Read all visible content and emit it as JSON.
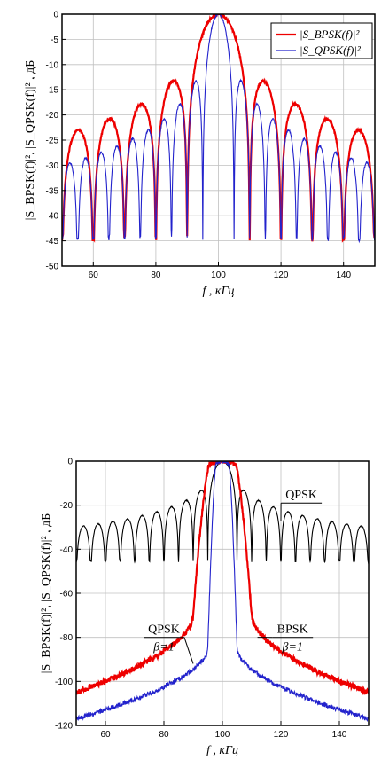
{
  "chart_data": [
    {
      "type": "line",
      "xlim": [
        50,
        150
      ],
      "ylim": [
        -50,
        0
      ],
      "x_ticks": [
        60,
        80,
        100,
        120,
        140
      ],
      "y_ticks": [
        0,
        -5,
        -10,
        -15,
        -20,
        -25,
        -30,
        -35,
        -40,
        -45,
        -50
      ],
      "xlabel": "f ,  кГц",
      "ylabel": "|S_BPSK(f)|², |S_QPSK(f)|² ,  дБ",
      "grid": true,
      "legend_position": "top-right",
      "series": [
        {
          "name": "|S_BPSK(f)|²",
          "color": "#ee0000",
          "model": "bpsk",
          "center": 100,
          "main_lobe_halfwidth": 10,
          "floor": -45
        },
        {
          "name": "|S_QPSK(f)|²",
          "color": "#2222cc",
          "model": "qpsk",
          "center": 100,
          "main_lobe_halfwidth": 5,
          "floor": -45
        }
      ]
    },
    {
      "type": "line",
      "xlim": [
        50,
        150
      ],
      "ylim": [
        -120,
        0
      ],
      "x_ticks": [
        60,
        80,
        100,
        120,
        140
      ],
      "y_ticks": [
        0,
        -20,
        -40,
        -60,
        -80,
        -100,
        -120
      ],
      "xlabel": "f ,  кГц",
      "ylabel": "|S_BPSK(f)|², |S_QPSK(f)|² ,  дБ",
      "grid": true,
      "series": [
        {
          "name": "QPSK",
          "color": "#000000",
          "model": "qpsk",
          "center": 100,
          "main_lobe_halfwidth": 5,
          "floor": -46
        },
        {
          "name": "BPSK β=1",
          "color": "#ee0000",
          "model": "rc",
          "center": 100,
          "bandwidth": 20,
          "edge_level": -70,
          "far_level": -105
        },
        {
          "name": "QPSK β=1",
          "color": "#2222cc",
          "model": "rc",
          "center": 100,
          "bandwidth": 10,
          "edge_level": -85,
          "far_level": -117
        }
      ],
      "annotations": [
        {
          "text": "QPSK",
          "sub": "",
          "x": 127,
          "y": -17,
          "arrow_to": [
            120,
            -27
          ]
        },
        {
          "text": "QPSK",
          "sub": "β=1",
          "x": 80,
          "y": -78,
          "arrow_to": [
            90,
            -92
          ]
        },
        {
          "text": "BPSK",
          "sub": "β=1",
          "x": 124,
          "y": -78,
          "arrow_to": [
            112,
            -80
          ]
        }
      ]
    }
  ]
}
